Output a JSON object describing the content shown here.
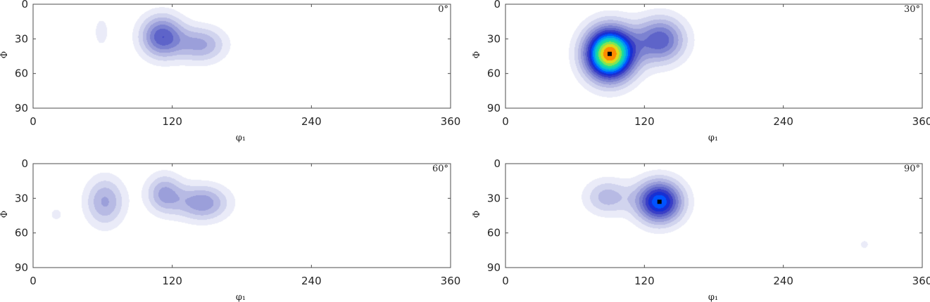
{
  "chart_data": [
    {
      "type": "heatmap",
      "section_label": "0°",
      "xlabel": "φ₁",
      "ylabel": "Φ",
      "xlim": [
        0,
        360
      ],
      "ylim": [
        90,
        0
      ],
      "xticks": [
        "0",
        "120",
        "240",
        "360"
      ],
      "yticks": [
        "0",
        "30",
        "60",
        "90"
      ],
      "grid": false,
      "peaks": [
        {
          "phi1": 59,
          "Phi": 24,
          "intensity": 0.1,
          "spread_phi1": 5,
          "spread_Phi": 10
        },
        {
          "phi1": 111,
          "Phi": 28,
          "intensity": 0.42,
          "spread_phi1": 13,
          "spread_Phi": 13
        },
        {
          "phi1": 145,
          "Phi": 35,
          "intensity": 0.26,
          "spread_phi1": 15,
          "spread_Phi": 11
        }
      ]
    },
    {
      "type": "heatmap",
      "section_label": "30°",
      "xlabel": "φ₁",
      "ylabel": "Φ",
      "xlim": [
        0,
        360
      ],
      "ylim": [
        90,
        0
      ],
      "xticks": [
        "0",
        "120",
        "240",
        "360"
      ],
      "yticks": [
        "0",
        "30",
        "60",
        "90"
      ],
      "grid": false,
      "max_marker": {
        "phi1": 90,
        "Phi": 43
      },
      "peaks": [
        {
          "phi1": 90,
          "Phi": 43,
          "intensity": 1.0,
          "spread_phi1": 15,
          "spread_Phi": 16
        },
        {
          "phi1": 134,
          "Phi": 31,
          "intensity": 0.42,
          "spread_phi1": 15,
          "spread_Phi": 14
        }
      ]
    },
    {
      "type": "heatmap",
      "section_label": "60°",
      "xlabel": "φ₁",
      "ylabel": "Φ",
      "xlim": [
        0,
        360
      ],
      "ylim": [
        90,
        0
      ],
      "xticks": [
        "0",
        "120",
        "240",
        "360"
      ],
      "yticks": [
        "0",
        "30",
        "60",
        "90"
      ],
      "grid": false,
      "peaks": [
        {
          "phi1": 20,
          "Phi": 44,
          "intensity": 0.1,
          "spread_phi1": 4,
          "spread_Phi": 4
        },
        {
          "phi1": 62,
          "Phi": 33,
          "intensity": 0.26,
          "spread_phi1": 12,
          "spread_Phi": 15
        },
        {
          "phi1": 113,
          "Phi": 26,
          "intensity": 0.26,
          "spread_phi1": 11,
          "spread_Phi": 12
        },
        {
          "phi1": 146,
          "Phi": 34,
          "intensity": 0.3,
          "spread_phi1": 16,
          "spread_Phi": 11
        }
      ]
    },
    {
      "type": "heatmap",
      "section_label": "90°",
      "xlabel": "φ₁",
      "ylabel": "Φ",
      "xlim": [
        0,
        360
      ],
      "ylim": [
        90,
        0
      ],
      "xticks": [
        "0",
        "120",
        "240",
        "360"
      ],
      "yticks": [
        "0",
        "30",
        "60",
        "90"
      ],
      "grid": false,
      "max_marker": {
        "phi1": 133,
        "Phi": 33
      },
      "peaks": [
        {
          "phi1": 88,
          "Phi": 29,
          "intensity": 0.22,
          "spread_phi1": 14,
          "spread_Phi": 11
        },
        {
          "phi1": 133,
          "Phi": 33,
          "intensity": 0.62,
          "spread_phi1": 14,
          "spread_Phi": 13
        },
        {
          "phi1": 310,
          "Phi": 70,
          "intensity": 0.1,
          "spread_phi1": 3,
          "spread_Phi": 3
        }
      ]
    }
  ],
  "colors": {
    "frame": "#4d4d4d",
    "text": "#262626",
    "background": "#ffffff",
    "marker": "#000000"
  },
  "colormap": [
    [
      0.0,
      "#ffffff"
    ],
    [
      0.08,
      "#e4e6f6"
    ],
    [
      0.22,
      "#a9adde"
    ],
    [
      0.38,
      "#5c62c8"
    ],
    [
      0.48,
      "#1f24c4"
    ],
    [
      0.56,
      "#0050ff"
    ],
    [
      0.66,
      "#00b8e8"
    ],
    [
      0.76,
      "#20e090"
    ],
    [
      0.86,
      "#d8ec20"
    ],
    [
      0.94,
      "#ff8800"
    ],
    [
      1.0,
      "#ff1010"
    ]
  ],
  "contour_levels": 16
}
